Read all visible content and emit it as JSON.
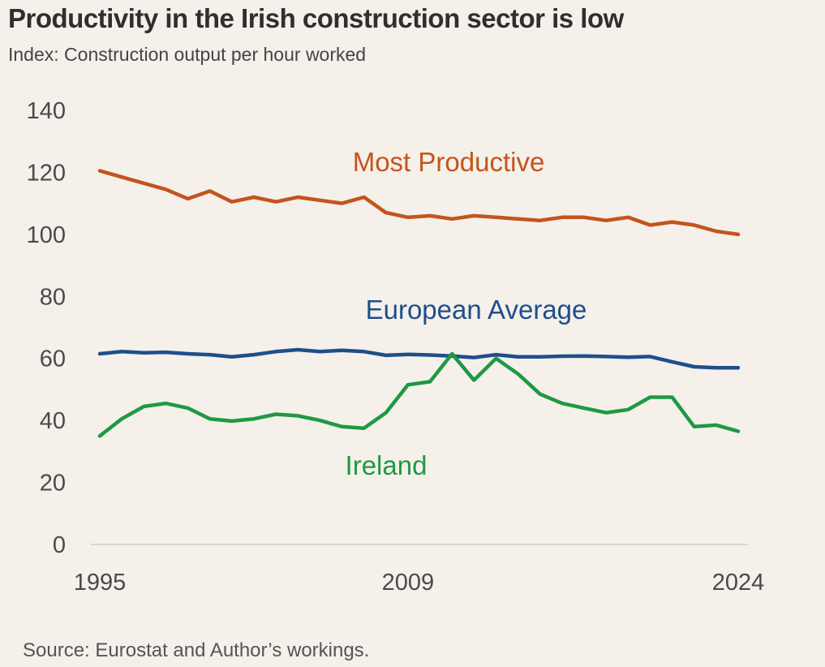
{
  "title": "Productivity in the Irish construction sector is low",
  "subtitle": "Index: Construction output per hour worked",
  "source": "Source: Eurostat and Author’s workings.",
  "colors": {
    "background": "#f5f0ea",
    "most_productive": "#c4541c",
    "european_average": "#1f4e8c",
    "ireland": "#1e9944",
    "axis": "#cccccc",
    "text": "#4a4a4a"
  },
  "chart_data": {
    "type": "line",
    "title": "Productivity in the Irish construction sector is low",
    "subtitle": "Index: Construction output per hour worked",
    "x": [
      1995,
      1996,
      1997,
      1998,
      1999,
      2000,
      2001,
      2002,
      2003,
      2004,
      2005,
      2006,
      2007,
      2008,
      2009,
      2010,
      2011,
      2012,
      2013,
      2014,
      2015,
      2016,
      2017,
      2018,
      2019,
      2020,
      2021,
      2022,
      2023,
      2024
    ],
    "x_ticks": [
      "1995",
      "2009",
      "2024"
    ],
    "y_ticks": [
      0,
      20,
      40,
      60,
      80,
      100,
      120,
      140
    ],
    "ylim": [
      0,
      140
    ],
    "grid": false,
    "legend": "inline labels",
    "series": [
      {
        "name": "Most Productive",
        "color": "#c4541c",
        "values": [
          120.5,
          118.5,
          116.5,
          114.5,
          111.5,
          114,
          110.5,
          112,
          110.5,
          112,
          111,
          110,
          112,
          107,
          105.5,
          106,
          105,
          106,
          105.5,
          105,
          104.5,
          105.5,
          105.5,
          104.5,
          105.5,
          103,
          104,
          103,
          101,
          100
        ]
      },
      {
        "name": "European Average",
        "color": "#1f4e8c",
        "values": [
          61.5,
          62.2,
          61.8,
          62,
          61.5,
          61.2,
          60.5,
          61.2,
          62.2,
          62.8,
          62.2,
          62.6,
          62.2,
          61,
          61.3,
          61.1,
          60.8,
          60.3,
          61.2,
          60.5,
          60.5,
          60.7,
          60.8,
          60.6,
          60.4,
          60.6,
          58.9,
          57.3,
          57,
          57
        ]
      },
      {
        "name": "Ireland",
        "color": "#1e9944",
        "values": [
          35,
          40.5,
          44.5,
          45.5,
          44,
          40.5,
          39.8,
          40.5,
          42,
          41.5,
          40,
          38,
          37.5,
          42.5,
          51.5,
          52.5,
          61.5,
          53,
          60,
          55,
          48.5,
          45.5,
          44,
          42.5,
          43.5,
          47.5,
          47.5,
          38,
          38.5,
          36.5
        ]
      }
    ]
  }
}
